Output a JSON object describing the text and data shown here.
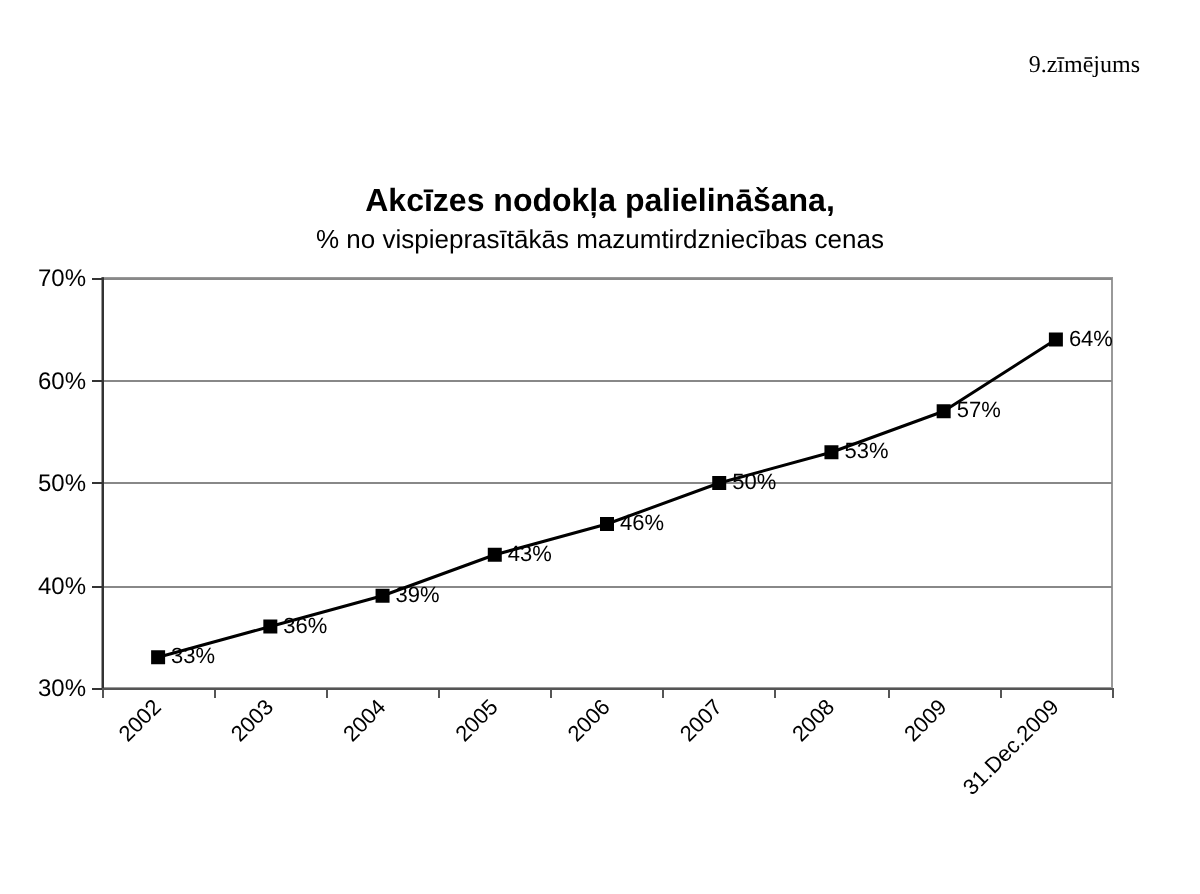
{
  "chart_data": {
    "type": "line",
    "title": "Akcīzes nodokļa palielināšana,",
    "subtitle": "% no vispieprasītākās mazumtirdzniecības cenas",
    "annotations": [
      "9.zīmējums"
    ],
    "categories": [
      "2002",
      "2003",
      "2004",
      "2005",
      "2006",
      "2007",
      "2008",
      "2009",
      "31.Dec.2009"
    ],
    "series": [
      {
        "color": "#000000",
        "values": [
          33,
          36,
          39,
          43,
          46,
          50,
          53,
          57,
          64
        ],
        "value_labels": [
          "33%",
          "36%",
          "39%",
          "43%",
          "46%",
          "50%",
          "53%",
          "57%",
          "64%"
        ]
      }
    ],
    "ylim": [
      30,
      70
    ],
    "yticks": [
      {
        "value": 30,
        "label": "30%"
      },
      {
        "value": 40,
        "label": "40%"
      },
      {
        "value": 50,
        "label": "50%"
      },
      {
        "value": 60,
        "label": "60%"
      },
      {
        "value": 70,
        "label": "70%"
      }
    ],
    "grid": "y",
    "marker": "square",
    "line_style": "solid"
  }
}
